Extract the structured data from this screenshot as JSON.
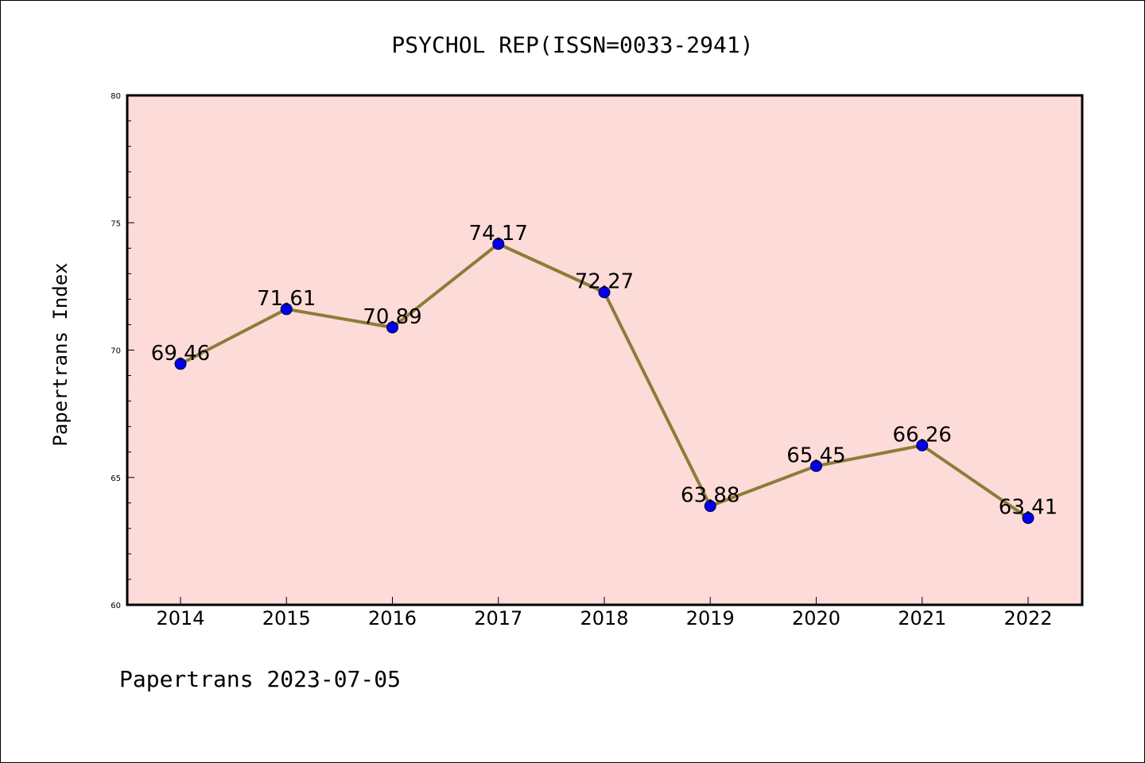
{
  "chart_data": {
    "type": "line",
    "title": "PSYCHOL REP(ISSN=0033-2941)",
    "xlabel": "",
    "ylabel": "Papertrans Index",
    "categories": [
      "2014",
      "2015",
      "2016",
      "2017",
      "2018",
      "2019",
      "2020",
      "2021",
      "2022"
    ],
    "values": [
      69.46,
      71.61,
      70.89,
      74.17,
      72.27,
      63.88,
      65.45,
      66.26,
      63.41
    ],
    "data_labels": [
      "69.46",
      "71.61",
      "70.89",
      "74.17",
      "72.27",
      "63.88",
      "65.45",
      "66.26",
      "63.41"
    ],
    "ylim": [
      60,
      80
    ],
    "yticks": [
      60,
      65,
      70,
      75,
      80
    ],
    "ytick_labels": [
      "60",
      "65",
      "70",
      "75",
      "80"
    ],
    "grid": false,
    "legend": "none",
    "plot_background": "#fddbd8",
    "line_color": "#8b7d3a",
    "marker_color": "#0000ee",
    "footer": "Papertrans 2023-07-05"
  }
}
